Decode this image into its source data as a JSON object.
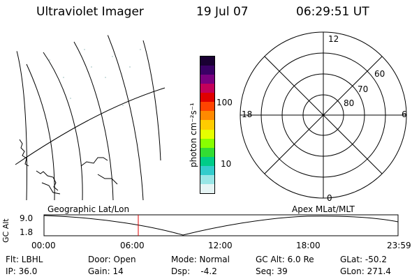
{
  "header": {
    "instrument": "Ultraviolet Imager",
    "date": "19 Jul 07",
    "time": "06:29:51 UT"
  },
  "colorbar": {
    "unit_label": "photon cm⁻²s⁻¹",
    "ticks": [
      "100",
      "10"
    ],
    "colors": [
      "#1a0033",
      "#3a0066",
      "#7a0080",
      "#c4005a",
      "#e00000",
      "#ff4400",
      "#ff8a00",
      "#ffcc00",
      "#e6ff00",
      "#88ff00",
      "#33dd33",
      "#00cc88",
      "#33cccc",
      "#99e6e6",
      "#e6f5f5"
    ]
  },
  "polar_plot": {
    "mlt_labels": {
      "top": "12",
      "left": "18",
      "right": "6",
      "bottom": "0"
    },
    "lat_labels": [
      "60",
      "70",
      "80"
    ]
  },
  "timeline": {
    "axis_title": "GC Alt",
    "y_ticks": [
      "9.0",
      "1.8"
    ],
    "left_label": "Geographic Lat/Lon",
    "right_label": "Apex  MLat/MLT",
    "x_ticks": [
      "00:00",
      "06:00",
      "12:00",
      "18:00",
      "23:59"
    ],
    "current_marker_color": "#e00000"
  },
  "info": {
    "row1": {
      "filter": "Flt: LBHL",
      "door": "Door: Open",
      "mode": "Mode: Normal",
      "gc_alt": "GC Alt: 6.0 Re",
      "glat": "GLat: -50.2"
    },
    "row2": {
      "ip": "IP: 36.0",
      "gain": "Gain: 14",
      "dsp": "Dsp:    -4.2",
      "seq": "Seq: 39",
      "glon": "GLon: 271.4"
    }
  }
}
